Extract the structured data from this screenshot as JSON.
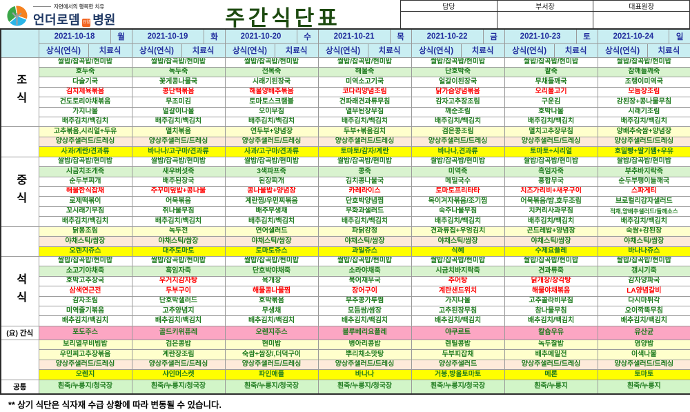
{
  "header": {
    "logo": {
      "tagline": "자연에서의 행복한 치유",
      "brand": "언더로뎀",
      "badge": "요양",
      "suffix": "병원"
    },
    "title": "주간식단표",
    "approval_labels": [
      "담당",
      "부서장",
      "대표원장"
    ]
  },
  "table": {
    "meal_labels": {
      "breakfast": "조식",
      "lunch": "중식",
      "dinner": "석식",
      "snack": "(요) 간식",
      "common": "공통"
    },
    "subcolumns": [
      "상식(연식)",
      "치료식"
    ],
    "days": [
      {
        "date": "2021-10-18",
        "weekday": "월",
        "breakfast": [
          "쌀밥/잡곡밥/현미밥",
          "호두죽",
          "다슬기국",
          "김치제육볶음",
          "건도토리야채볶음",
          "가지나물",
          "배추김치/백김치",
          "고추볶음,시리얼+두유",
          "양상추샐러드/드레싱",
          "사과/계란/견과류"
        ],
        "breakfast_red": [
          3
        ],
        "lunch": [
          "쌀밥/잡곡밥/현미밥",
          "시금치조개죽",
          "순두부찌개",
          "해물한식잡채",
          "로제떡볶이",
          "꼬시래기무침",
          "배추김치/백김치",
          "닭봉조림",
          "야채스틱/쌈장",
          "오렌지쥬스"
        ],
        "lunch_red": [
          3
        ],
        "dinner": [
          "쌀밥/잡곡밥/현미밥",
          "소고기야채죽",
          "호박고추장국",
          "삼색연근전",
          "감자조림",
          "미역줄기볶음",
          "배추김치/백김치"
        ],
        "dinner_red": [
          3
        ],
        "snack": "포도주스",
        "special": [
          "보리열무비빔밥",
          "우민찌고추장볶음",
          "양상추샐러드/드레싱",
          "오렌지"
        ],
        "common": "흰죽/누룽지/청국장"
      },
      {
        "date": "2021-10-19",
        "weekday": "화",
        "breakfast": [
          "쌀밥/잡곡밥/현미밥",
          "녹두죽",
          "꽃게콩나물국",
          "콩단백볶음",
          "무조미김",
          "얼갈이나물",
          "배추김치/백김치",
          "멸치볶음",
          "양상추샐러드/드레싱",
          "바나나/고구마/견과류"
        ],
        "breakfast_red": [
          3
        ],
        "lunch": [
          "쌀밥/잡곡밥/현미밥",
          "새우버섯죽",
          "배추된장국",
          "주꾸미덮밥+콩나물",
          "어묵볶음",
          "취나물무침",
          "배추김치/백김치",
          "녹두전",
          "야채스틱/쌈장",
          "대추토마토"
        ],
        "lunch_red": [
          3
        ],
        "dinner": [
          "쌀밥/잡곡밥/현미밥",
          "흑임자죽",
          "우거지감자탕",
          "두부구이",
          "단호박샐러드",
          "고추양념지",
          "배추김치/백김치"
        ],
        "dinner_red": [
          2,
          3
        ],
        "snack": "골드키위퓨레",
        "special": [
          "검은콩밥",
          "계란장조림",
          "양상추샐러드/드레싱",
          "샤인머스켓"
        ],
        "common": "흰죽/누룽지/청국장"
      },
      {
        "date": "2021-10-20",
        "weekday": "수",
        "breakfast": [
          "쌀밥/잡곡밥/현미밥",
          "전복죽",
          "시래기된장국",
          "해물양배추볶음",
          "토마토스크램블",
          "오이무침",
          "배추김치/백김치",
          "연두부+양념장",
          "양상추샐러드/드레싱",
          "사과/고구마/견과류"
        ],
        "breakfast_red": [
          3
        ],
        "lunch": [
          "쌀밥/잡곡밥/현미밥",
          "3색파프죽",
          "된장찌개",
          "콩나물밥+양념장",
          "계란찜/우민찌볶음",
          "배추무생채",
          "배추김치/백김치",
          "연어샐러드",
          "야채스틱/쌈장",
          "토마토쥬스"
        ],
        "lunch_red": [
          3
        ],
        "dinner": [
          "쌀밥/잡곡밥/현미밥",
          "단호박야채죽",
          "육개장",
          "해물콩나물찜",
          "호박볶음",
          "무생채",
          "배추김치/백김치"
        ],
        "dinner_red": [
          3
        ],
        "snack": "오렌지주스",
        "special": [
          "현미밥",
          "숙쌈+쌈장/,더덕구이",
          "양상추샐러드/드레싱",
          "파인애플"
        ],
        "common": "흰죽/누룽지/청국장"
      },
      {
        "date": "2021-10-21",
        "weekday": "목",
        "breakfast": [
          "쌀밥/잡곡밥/현미밥",
          "해물죽",
          "미역소고기국",
          "코다리양념조림",
          "건파래견과류무침",
          "열무된장무침",
          "배추김치/백김치",
          "두부+볶음김치",
          "양상추샐러드/드레싱",
          "토마토/감자/계란"
        ],
        "breakfast_red": [
          3
        ],
        "lunch": [
          "쌀밥/잡곡밥/현미밥",
          "콩죽",
          "김치콩나물국",
          "카레라이스",
          "단호박양념찜",
          "무화과샐러드",
          "배추김치/백김치",
          "파닭강정",
          "야채스틱/쌈장",
          "과일쥬스"
        ],
        "lunch_red": [
          3
        ],
        "dinner": [
          "쌀밥/잡곡밥/현미밥",
          "소라야채죽",
          "북어채무국",
          "장어구이",
          "부추콩가루찜",
          "모듬쌈/쌈장",
          "배추김치/백김치"
        ],
        "dinner_red": [
          3
        ],
        "snack": "블루베리요플레",
        "special": [
          "병아리콩밥",
          "뿌리채소맛탕",
          "양상추샐러드/드레싱",
          "바나나"
        ],
        "common": "흰죽/누룽지/청국장"
      },
      {
        "date": "2021-10-22",
        "weekday": "금",
        "breakfast": [
          "쌀밥/잡곡밥/현미밥",
          "단호박죽",
          "얼갈이된장국",
          "닭가슴양념볶음",
          "감자고추장조림",
          "깨순조림",
          "배추김치/백김치",
          "검은콩조림",
          "양상추샐러드/드레싱",
          "바나나,견과류"
        ],
        "breakfast_red": [
          3
        ],
        "lunch": [
          "쌀밥/잡곡밥/현미밥",
          "미역죽",
          "메밀국수",
          "토마토프리타타",
          "목이겨자볶음/조기찜",
          "숙주나물무침",
          "배추김치/백김치",
          "견과류칩+우엉김치",
          "야채스틱/쌈장",
          "식혜"
        ],
        "lunch_red": [
          3
        ],
        "dinner": [
          "쌀밥/잡곡밥/현미밥",
          "시금치바지락죽",
          "추어탕",
          "계란샌드위치",
          "가지나물",
          "고추된장무침",
          "배추김치/백김치"
        ],
        "dinner_red": [
          2,
          3
        ],
        "snack": "야쿠르트",
        "special": [
          "렌틸콩밥",
          "두부피잡채",
          "양상추샐러드",
          "거봉,방울토마토"
        ],
        "common": "흰죽/누룽지/청국장"
      },
      {
        "date": "2021-10-23",
        "weekday": "토",
        "breakfast": [
          "쌀밥/잡곡밥/현미밥",
          "팥죽",
          "무채들깨국",
          "오리불고기",
          "구운김",
          "호박나물",
          "배추김치/백김치",
          "멸치고추장무침",
          "양상추샐러드/드레싱",
          "토마토+시리얼"
        ],
        "breakfast_red": [
          3
        ],
        "lunch": [
          "쌀밥/잡곡밥/현미밥",
          "흑임자죽",
          "홍합무국",
          "치즈가리비+새우구이",
          "어묵볶음/밤,호두조림",
          "치커리사과무침",
          "배추김치/백김치",
          "곤드레밥+양념장",
          "야채스틱/쌈장",
          "수제요플레"
        ],
        "lunch_red": [
          3
        ],
        "dinner": [
          "쌀밥/잡곡밥/현미밥",
          "견과류죽",
          "닭개장/장각탕",
          "해물야채볶음",
          "고추콜라비무침",
          "참나물무침",
          "배추김치/백김치"
        ],
        "dinner_red": [
          2,
          3
        ],
        "snack": "칼슘우유",
        "special": [
          "녹두찰밥",
          "배추메밀전",
          "양상추샐러드/드레싱",
          "메론"
        ],
        "common": "흰죽/누룽지"
      },
      {
        "date": "2021-10-24",
        "weekday": "일",
        "breakfast": [
          "쌀밥/잡곡밥/현미밥",
          "참깨들깨죽",
          "조랭이미역국",
          "모듬장조림",
          "강된장+콩나물무침",
          "시래기조림",
          "배추김치/백김치",
          "양배추숙쌈+양념장",
          "양상추샐러드/드레싱",
          "호밀빵+딸기쨈+우유"
        ],
        "breakfast_red": [
          3
        ],
        "lunch": [
          "쌀밥/잡곡밥/현미밥",
          "부추바지락죽",
          "순두부팽이들깨국",
          "스파게티",
          "브로컬리감자샐러드",
          "적채,양배추샐러드/들깨소스",
          "배추김치/백김치",
          "숙쌈+강된장",
          "야채스틱/쌈장",
          "바나나쥬스"
        ],
        "lunch_red": [
          3
        ],
        "dinner": [
          "쌀밥/잡곡밥/현미밥",
          "갱시기죽",
          "감자양파국",
          "LA양념갈비",
          "다시마튀각",
          "오이깍뚝무침",
          "배추김치/백김치"
        ],
        "dinner_red": [
          3
        ],
        "snack": "유산균",
        "special": [
          "영양밥",
          "이색나물",
          "양상추샐러드/드레싱",
          "토마토"
        ],
        "common": "흰죽/누룽지"
      }
    ]
  },
  "footer": {
    "note": "** 상기 식단은 식자재 수급 상황에 따라 변동될 수 있습니다."
  },
  "colors": {
    "header_bg": "#c9eef2",
    "header_text": "#222e9e",
    "menu_text": "#1e7b1e",
    "highlight_red": "#ff0000",
    "porridge_row_bg": "#d9f3cf",
    "pale_yellow_bg": "#ffffcc",
    "cream_bg": "#fdeada",
    "bright_yellow_bg": "#ffff00",
    "snack_pink_bg": "#fca6c3",
    "common_green_bg": "#d2f5c8",
    "title_green": "#1d4a10",
    "brand_navy": "#1f3864",
    "badge_orange": "#f26522"
  }
}
